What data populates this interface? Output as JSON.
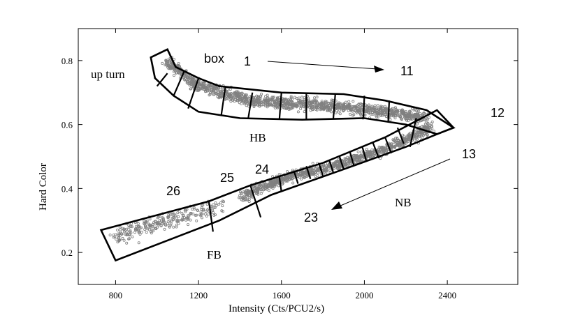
{
  "chart_data": {
    "type": "scatter",
    "xlabel": "Intensity (Cts/PCU2/s)",
    "ylabel": "Hard Color",
    "xlim": [
      620,
      2740
    ],
    "ylim": [
      0.1,
      0.9
    ],
    "x_ticks": [
      "800",
      "1200",
      "1600",
      "2000",
      "2400"
    ],
    "y_ticks": [
      "0.2",
      "0.4",
      "0.6",
      "0.8"
    ],
    "grid": false,
    "annotations": {
      "up_turn": "up turn",
      "box": "box",
      "hb": "HB",
      "nb": "NB",
      "fb": "FB",
      "n1": "1",
      "n11": "11",
      "n12": "12",
      "n13": "13",
      "n23": "23",
      "n24": "24",
      "n25": "25",
      "n26": "26"
    },
    "hb_track": [
      [
        1050,
        0.8
      ],
      [
        1180,
        0.725
      ],
      [
        1450,
        0.675
      ],
      [
        1800,
        0.66
      ],
      [
        2100,
        0.64
      ],
      [
        2300,
        0.62
      ]
    ],
    "nb_track": [
      [
        2320,
        0.59
      ],
      [
        2100,
        0.52
      ],
      [
        1850,
        0.47
      ],
      [
        1600,
        0.43
      ],
      [
        1400,
        0.37
      ]
    ],
    "fb_track": [
      [
        1300,
        0.34
      ],
      [
        1100,
        0.31
      ],
      [
        800,
        0.25
      ]
    ],
    "hb_upper_edge": [
      [
        970,
        0.81
      ],
      [
        1090,
        0.78
      ],
      [
        1200,
        0.745
      ],
      [
        1300,
        0.72
      ],
      [
        1600,
        0.7
      ],
      [
        1900,
        0.695
      ],
      [
        2300,
        0.645
      ]
    ],
    "hb_lower_edge": [
      [
        990,
        0.745
      ],
      [
        1080,
        0.69
      ],
      [
        1200,
        0.64
      ],
      [
        1400,
        0.62
      ],
      [
        1700,
        0.615
      ],
      [
        2000,
        0.62
      ],
      [
        2350,
        0.57
      ]
    ],
    "nb_upper_edge": [
      [
        2350,
        0.645
      ],
      [
        2100,
        0.56
      ],
      [
        1800,
        0.48
      ],
      [
        1450,
        0.41
      ],
      [
        1250,
        0.36
      ],
      [
        780,
        0.27
      ]
    ],
    "nb_lower_edge": [
      [
        2430,
        0.59
      ],
      [
        2200,
        0.53
      ],
      [
        1900,
        0.46
      ],
      [
        1550,
        0.38
      ],
      [
        1300,
        0.3
      ],
      [
        820,
        0.18
      ]
    ]
  }
}
